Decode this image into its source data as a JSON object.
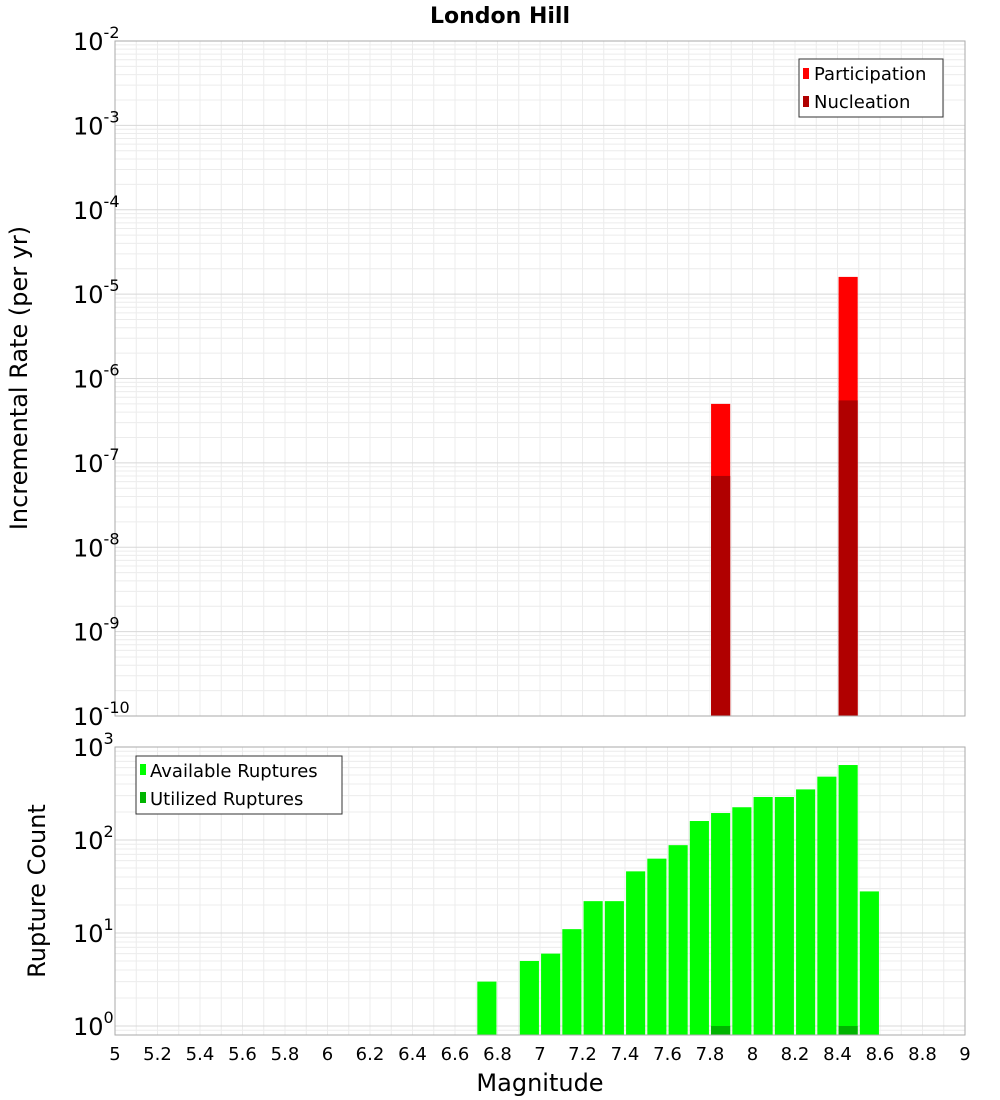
{
  "chart_data": [
    {
      "type": "bar",
      "title": "London Hill",
      "ylabel": "Incremental Rate (per yr)",
      "xlim": [
        5,
        9
      ],
      "ylim": [
        1e-10,
        0.01
      ],
      "yscale": "log",
      "ytick_base": "10",
      "yticks": [
        {
          "exp": "-2",
          "value": 0.01
        },
        {
          "exp": "-3",
          "value": 0.001
        },
        {
          "exp": "-4",
          "value": 0.0001
        },
        {
          "exp": "-5",
          "value": 1e-05
        },
        {
          "exp": "-6",
          "value": 1e-06
        },
        {
          "exp": "-7",
          "value": 1e-07
        },
        {
          "exp": "-8",
          "value": 1e-08
        },
        {
          "exp": "-9",
          "value": 1e-09
        },
        {
          "exp": "-10",
          "value": 1e-10
        }
      ],
      "legend_position": "top-right",
      "series": [
        {
          "name": "Participation",
          "color": "#ff0000",
          "x": [
            7.85,
            8.45
          ],
          "values": [
            5e-07,
            1.6e-05
          ]
        },
        {
          "name": "Nucleation",
          "color": "#b00000",
          "x": [
            7.85,
            8.45
          ],
          "values": [
            7e-08,
            5.5e-07
          ]
        }
      ]
    },
    {
      "type": "bar",
      "ylabel": "Rupture Count",
      "xlabel": "Magnitude",
      "xlim": [
        5,
        9
      ],
      "ylim": [
        0.8,
        1000
      ],
      "yscale": "log",
      "ytick_base": "10",
      "yticks": [
        {
          "exp": "3",
          "value": 1000
        },
        {
          "exp": "2",
          "value": 100
        },
        {
          "exp": "1",
          "value": 10
        },
        {
          "exp": "0",
          "value": 1
        }
      ],
      "xticks": [
        "5",
        "5.2",
        "5.4",
        "5.6",
        "5.8",
        "6",
        "6.2",
        "6.4",
        "6.6",
        "6.8",
        "7",
        "7.2",
        "7.4",
        "7.6",
        "7.8",
        "8",
        "8.2",
        "8.4",
        "8.6",
        "8.8",
        "9"
      ],
      "legend_position": "top-left",
      "series": [
        {
          "name": "Available Ruptures",
          "color": "#00ff00",
          "x": [
            6.75,
            6.95,
            7.05,
            7.15,
            7.25,
            7.35,
            7.45,
            7.55,
            7.65,
            7.75,
            7.85,
            7.95,
            8.05,
            8.15,
            8.25,
            8.35,
            8.45,
            8.55
          ],
          "values": [
            3,
            5,
            6,
            11,
            22,
            22,
            46,
            63,
            88,
            160,
            195,
            225,
            290,
            290,
            350,
            480,
            640,
            28
          ]
        },
        {
          "name": "Utilized Ruptures",
          "color": "#00b400",
          "x": [
            7.85,
            8.45
          ],
          "values": [
            1,
            1
          ]
        }
      ]
    }
  ]
}
